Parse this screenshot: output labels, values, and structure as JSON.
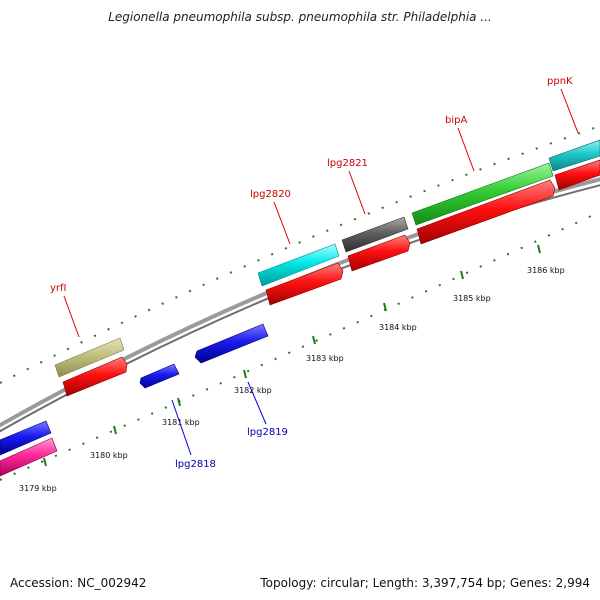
{
  "title": "Legionella pneumophila subsp. pneumophila str. Philadelphia ...",
  "footer": {
    "accession": "Accession: NC_002942",
    "summary": "Topology: circular; Length: 3,397,754 bp; Genes: 2,994"
  },
  "axis": {
    "ticks": [
      "3179 kbp",
      "3180 kbp",
      "3181 kbp",
      "3182 kbp",
      "3183 kbp",
      "3184 kbp",
      "3185 kbp",
      "3186 kbp"
    ]
  },
  "genes": [
    {
      "name": "yrfI",
      "strand": "top",
      "color": "#c2c07e",
      "label_color": "#cc0000"
    },
    {
      "name": "lpg2820",
      "strand": "top",
      "color": "#00e8e8",
      "label_color": "#cc0000"
    },
    {
      "name": "lpg2821",
      "strand": "top",
      "color": "#606060",
      "label_color": "#cc0000"
    },
    {
      "name": "bipA",
      "strand": "top",
      "color": "#33cc33",
      "label_color": "#cc0000"
    },
    {
      "name": "ppnK",
      "strand": "top",
      "color": "#1ec8c8",
      "label_color": "#cc0000"
    },
    {
      "name": "lpg2818",
      "strand": "bottom",
      "color": "#1a1af0",
      "label_color": "#0000aa"
    },
    {
      "name": "lpg2819",
      "strand": "bottom",
      "color": "#1a1af0",
      "label_color": "#0000aa"
    }
  ],
  "colors": {
    "backbone": "#8a8a8a",
    "tick": "#1f7a1f",
    "cds_top": "#ff1010",
    "unlabeled_blue": "#1a1ae8",
    "unlabeled_pink": "#ff2a9a"
  }
}
